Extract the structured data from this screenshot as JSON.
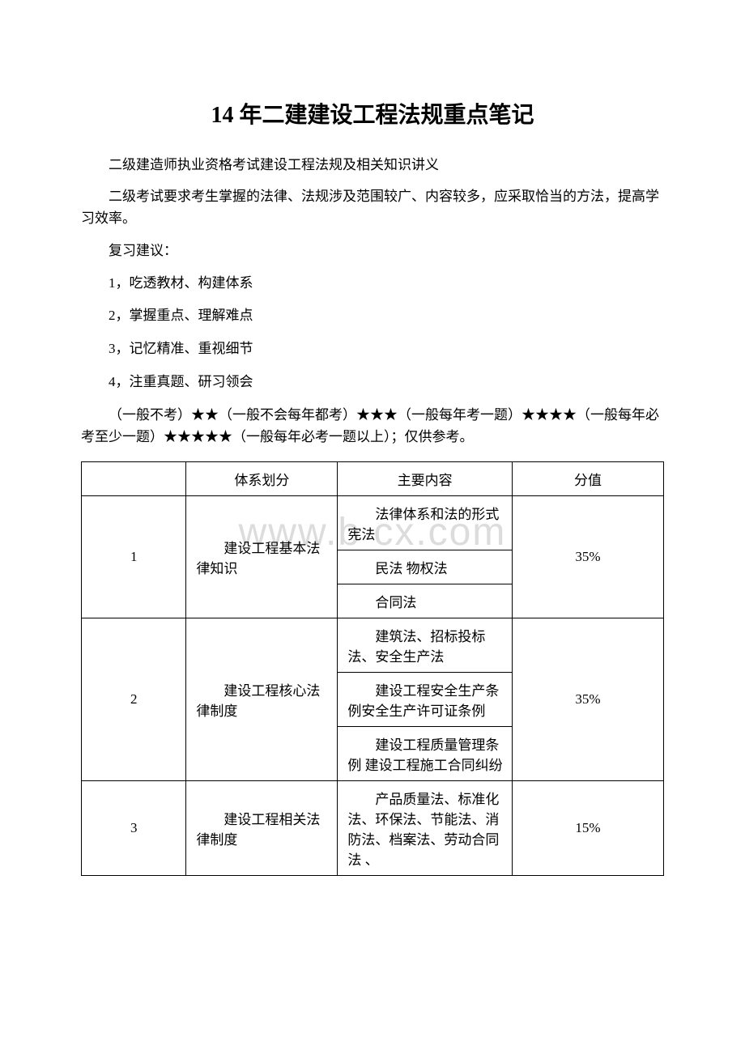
{
  "title": "14 年二建建设工程法规重点笔记",
  "intro1": "二级建造师执业资格考试建设工程法规及相关知识讲义",
  "intro2": "二级考试要求考生掌握的法律、法规涉及范围较广、内容较多，应采取恰当的方法，提高学习效率。",
  "review_heading": "复习建议：",
  "review_items": [
    "1，吃透教材、构建体系",
    "2，掌握重点、理解难点",
    "3，记忆精准、重视细节",
    "4，注重真题、研习领会"
  ],
  "stars_para": "（一般不考）★★（一般不会每年都考）★★★（一般每年考一题）★★★★（一般每年必考至少一题）★★★★★（一般每年必考一题以上）；仅供参考。",
  "watermark": "www.b    cx.com",
  "table": {
    "headers": {
      "idx": "",
      "system": "体系划分",
      "content": "主要内容",
      "score": "分值"
    },
    "rows": [
      {
        "idx": "1",
        "system": "建设工程基本法律知识",
        "contents": [
          "法律体系和法的形式 宪法",
          "民法 物权法",
          "合同法"
        ],
        "score": "35%"
      },
      {
        "idx": "2",
        "system": "建设工程核心法律制度",
        "contents": [
          "建筑法、招标投标法、安全生产法",
          "建设工程安全生产条例安全生产许可证条例",
          "建设工程质量管理条例 建设工程施工合同纠纷"
        ],
        "score": "35%"
      },
      {
        "idx": "3",
        "system": "建设工程相关法律制度",
        "contents": [
          "产品质量法、标准化法、环保法、节能法、消防法、档案法、劳动合同法 、"
        ],
        "score": "15%"
      }
    ]
  }
}
